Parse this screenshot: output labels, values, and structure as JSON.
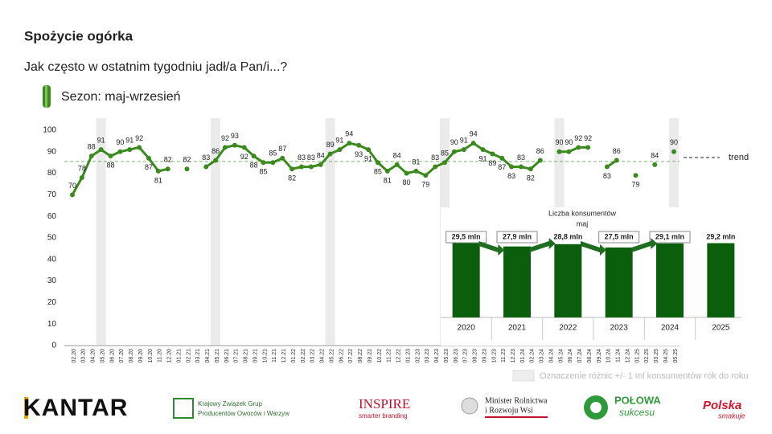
{
  "chart_data": [
    {
      "type": "line",
      "title": "Spożycie ogórka",
      "subtitle": "Jak często w ostatnim tygodniu jadł/a Pan/i...?",
      "season_label": "Sezon: maj-wrzesień",
      "color": "#3a8a1e",
      "categories": [
        "02.20",
        "03.20",
        "04.20",
        "05.20",
        "06.20",
        "07.20",
        "08.20",
        "09.20",
        "10.20",
        "11.20",
        "12.20",
        "01.21",
        "02.21",
        "03.21",
        "04.21",
        "05.21",
        "06.21",
        "07.21",
        "08.21",
        "09.21",
        "10.21",
        "11.21",
        "12.21",
        "01.22",
        "02.22",
        "03.22",
        "04.22",
        "05.22",
        "06.22",
        "07.22",
        "08.22",
        "09.22",
        "10.22",
        "11.22",
        "12.22",
        "01.23",
        "02.23",
        "03.23",
        "04.23",
        "05.23",
        "06.23",
        "07.23",
        "08.23",
        "09.23",
        "10.23",
        "11.23",
        "12.23",
        "01.24",
        "02.24",
        "03.24",
        "04.24",
        "05.24",
        "06.24",
        "07.24",
        "08.24",
        "09.24",
        "10.24",
        "11.24",
        "12.24",
        "01.25",
        "02.25",
        "03.25",
        "04.25",
        "05.25"
      ],
      "values": [
        70,
        78,
        88,
        91,
        88,
        90,
        91,
        92,
        87,
        81,
        82,
        null,
        82,
        null,
        83,
        86,
        92,
        93,
        92,
        88,
        85,
        85,
        87,
        82,
        83,
        83,
        84,
        89,
        91,
        94,
        93,
        91,
        85,
        81,
        84,
        80,
        81,
        79,
        83,
        85,
        90,
        91,
        94,
        91,
        89,
        87,
        83,
        83,
        82,
        86,
        null,
        90,
        90,
        92,
        92,
        null,
        83,
        86,
        null,
        79,
        null,
        84,
        null,
        90
      ],
      "trend": {
        "label": "trend",
        "value": 85.5
      },
      "ylim": [
        0,
        100
      ],
      "yticks": [
        0,
        10,
        20,
        30,
        40,
        50,
        60,
        70,
        80,
        90,
        100
      ]
    },
    {
      "type": "bar",
      "title": [
        "Liczba konsumentów",
        "maj"
      ],
      "categories": [
        "2020",
        "2021",
        "2022",
        "2023",
        "2024",
        "2025"
      ],
      "values": [
        29.5,
        27.9,
        28.8,
        27.5,
        29.1,
        29.2
      ],
      "value_labels": [
        "29,5 mln",
        "27,9 mln",
        "28,8 mln",
        "27,5 mln",
        "29,1 mln",
        "29,2 mln"
      ],
      "boxed": [
        true,
        true,
        false,
        true,
        true,
        false
      ],
      "color": "#0b5e0b",
      "ylim": [
        0,
        30
      ]
    }
  ],
  "note": "Oznaczenie różnic +/- 1 ml konsumentów rok do roku",
  "logos": {
    "kantar": "KANTAR",
    "kzg": [
      "Krajowy Związek Grup",
      "Producentów Owoców i Warzyw"
    ],
    "inspire": [
      "INSPIRE",
      "smarter branding"
    ],
    "minister": [
      "Minister Rolnictwa",
      "i Rozwoju Wsi"
    ],
    "polowa": [
      "POŁOWA",
      "sukcesu"
    ],
    "polska": [
      "Polska",
      "smakuje"
    ]
  }
}
